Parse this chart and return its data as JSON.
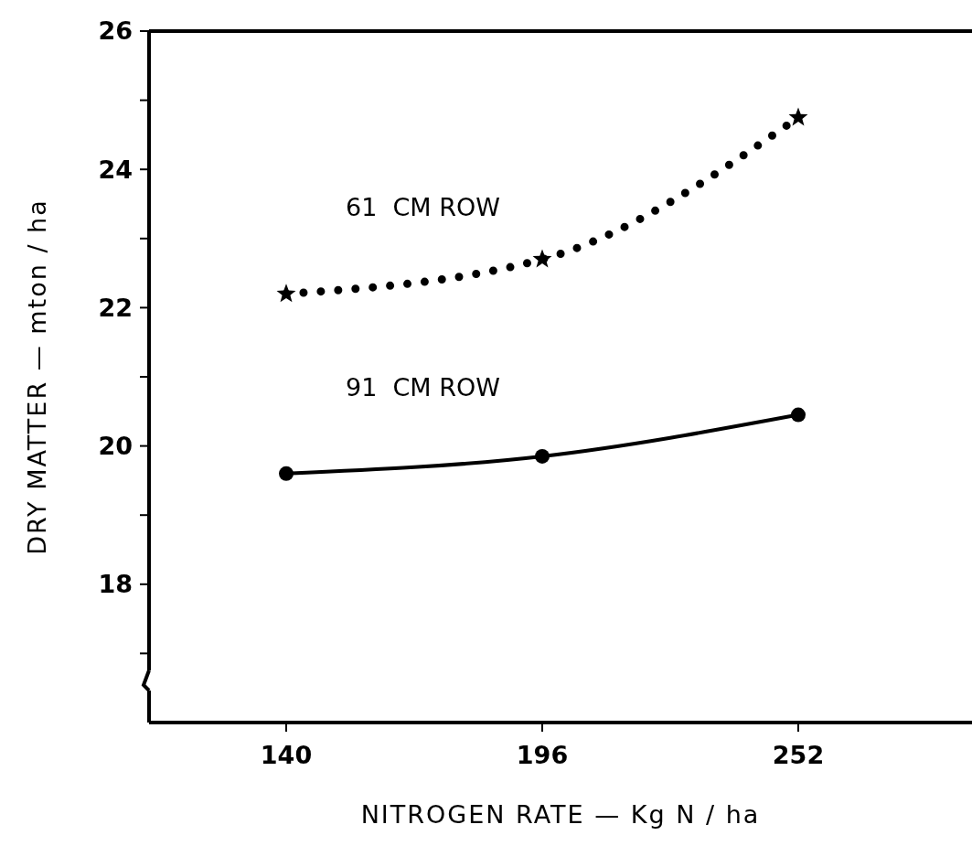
{
  "chart_data": {
    "type": "line",
    "xlabel": "NITROGEN RATE — Kg N / ha",
    "ylabel": "DRY MATTER — mton / ha",
    "x": [
      140,
      196,
      252
    ],
    "series": [
      {
        "name": "61  CM ROW",
        "color": "#000000",
        "values": [
          22.2,
          22.7,
          24.75
        ],
        "marker": "star",
        "line_style": "dotted"
      },
      {
        "name": "91  CM ROW",
        "color": "#000000",
        "values": [
          19.6,
          19.85,
          20.45
        ],
        "marker": "circle",
        "line_style": "solid"
      }
    ],
    "xlim": [
      110,
      290
    ],
    "xticks": [
      140,
      196,
      252
    ],
    "ylim": [
      16,
      26
    ],
    "yticks": [
      {
        "value": 17,
        "label": null
      },
      18,
      {
        "value": 19,
        "label": null
      },
      20,
      {
        "value": 21,
        "label": null
      },
      22,
      {
        "value": 23,
        "label": null
      },
      24,
      {
        "value": 25,
        "label": null
      },
      26
    ],
    "grid": false
  }
}
